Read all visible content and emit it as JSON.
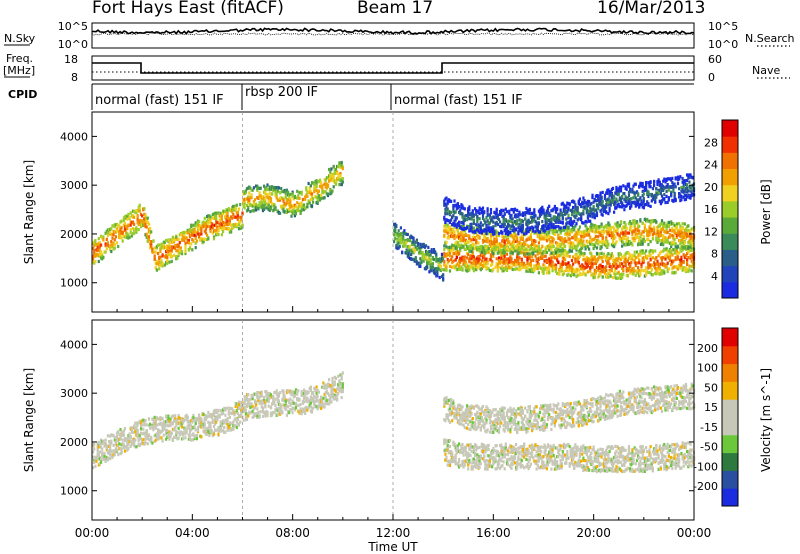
{
  "header": {
    "station": "Fort Hays East (fitACF)",
    "beam": "Beam 17",
    "date": "16/Mar/2013"
  },
  "left_labels": {
    "nsky": "N.Sky",
    "freq": "Freq.",
    "freq_unit": "[MHz]",
    "cpid": "CPID"
  },
  "right_labels": {
    "nsearch": "N.Search",
    "nave": "Nave"
  },
  "noise_panel": {
    "left_ticks": [
      "10^5",
      "10^0"
    ],
    "right_ticks": [
      "10^5",
      "10^0"
    ]
  },
  "freq_panel": {
    "left_ticks": [
      "18",
      "8"
    ],
    "right_ticks": [
      "60",
      "0"
    ]
  },
  "cpid_segments": [
    {
      "label": "normal (fast) 151 IF",
      "start_h": 0,
      "end_h": 6
    },
    {
      "label": "rbsp 200 IF",
      "start_h": 6,
      "end_h": 12
    },
    {
      "label": "normal (fast) 151 IF",
      "start_h": 12,
      "end_h": 24
    }
  ],
  "colors": {
    "power_scale": [
      "#1a2be0",
      "#2244bb",
      "#2a5e88",
      "#3a8a5a",
      "#5aaa3a",
      "#9acc2a",
      "#f0d020",
      "#f0a000",
      "#f07000",
      "#f03000",
      "#e00000"
    ],
    "velocity_scale": [
      "#1a2be0",
      "#2a4fa0",
      "#2e7a3e",
      "#6ac83a",
      "#c8c8b8",
      "#c8c8b8",
      "#f0b000",
      "#f08000",
      "#f04000",
      "#e00000"
    ]
  },
  "chart_data": [
    {
      "type": "heatmap",
      "name": "power",
      "xlabel": "Time UT",
      "ylabel": "Slant Range [km]",
      "x_ticks": [
        "00:00",
        "04:00",
        "08:00",
        "12:00",
        "16:00",
        "20:00",
        "00:00"
      ],
      "xlim": [
        0,
        24
      ],
      "y_ticks": [
        "1000",
        "2000",
        "3000",
        "4000"
      ],
      "ylim": [
        400,
        4500
      ],
      "colorbar": {
        "label": "Power [dB]",
        "ticks": [
          "28",
          "24",
          "20",
          "16",
          "12",
          "8",
          "4"
        ],
        "range": [
          0,
          30
        ]
      },
      "bands": [
        {
          "x": [
            0,
            0.5,
            1,
            1.5,
            2,
            2.5,
            3,
            3.5,
            4,
            4.5,
            5,
            5.5,
            6
          ],
          "y": [
            1600,
            1800,
            2000,
            2200,
            2400,
            1500,
            1650,
            1800,
            1950,
            2100,
            2200,
            2300,
            2400
          ],
          "power": 26
        },
        {
          "x": [
            6,
            7,
            8,
            9,
            10
          ],
          "y": [
            2700,
            2750,
            2600,
            2900,
            3300
          ],
          "power": 22
        },
        {
          "x": [
            12,
            12.5,
            13,
            13.5,
            14
          ],
          "y": [
            2000,
            1800,
            1600,
            1450,
            1300
          ],
          "power": 16
        },
        {
          "x": [
            14,
            15,
            16,
            17,
            18,
            19,
            20,
            21,
            22,
            23,
            24
          ],
          "y": [
            1500,
            1500,
            1500,
            1500,
            1450,
            1400,
            1350,
            1350,
            1400,
            1450,
            1500
          ],
          "power": 27
        },
        {
          "x": [
            14,
            15,
            16,
            17,
            18,
            19,
            20,
            21,
            22,
            23,
            24
          ],
          "y": [
            2000,
            1900,
            1850,
            1850,
            1850,
            1900,
            1950,
            2000,
            2050,
            2000,
            1950
          ],
          "power": 24
        },
        {
          "x": [
            14,
            15,
            16,
            17,
            18,
            19,
            20,
            21,
            22,
            23,
            24
          ],
          "y": [
            2500,
            2300,
            2250,
            2250,
            2300,
            2400,
            2550,
            2750,
            2800,
            2900,
            3000
          ],
          "power": 9
        }
      ]
    },
    {
      "type": "heatmap",
      "name": "velocity",
      "xlabel": "Time UT",
      "ylabel": "Slant Range [km]",
      "x_ticks": [
        "00:00",
        "04:00",
        "08:00",
        "12:00",
        "16:00",
        "20:00",
        "00:00"
      ],
      "xlim": [
        0,
        24
      ],
      "y_ticks": [
        "1000",
        "2000",
        "3000",
        "4000"
      ],
      "ylim": [
        400,
        4500
      ],
      "colorbar": {
        "label": "Velocity [m s^-1]",
        "ticks": [
          "200",
          "100",
          "50",
          "15",
          "-15",
          "-50",
          "-100",
          "-200"
        ],
        "range": [
          -250,
          250
        ]
      },
      "bands": [
        {
          "x": [
            0,
            1,
            2,
            3,
            4,
            5,
            6
          ],
          "y": [
            1700,
            2000,
            2200,
            2300,
            2300,
            2400,
            2600
          ],
          "velocity": 0
        },
        {
          "x": [
            6,
            7,
            8,
            9,
            10
          ],
          "y": [
            2700,
            2800,
            2800,
            2900,
            3200
          ],
          "velocity": 0
        },
        {
          "x": [
            14,
            15,
            16,
            17,
            18,
            19,
            20,
            21,
            22,
            23,
            24
          ],
          "y": [
            1800,
            1700,
            1700,
            1700,
            1700,
            1700,
            1650,
            1650,
            1650,
            1700,
            1750
          ],
          "velocity": 0
        },
        {
          "x": [
            14,
            15,
            16,
            17,
            18,
            19,
            20,
            21,
            22,
            23,
            24
          ],
          "y": [
            2700,
            2500,
            2450,
            2450,
            2500,
            2550,
            2650,
            2800,
            2850,
            2900,
            2950
          ],
          "velocity": 0
        }
      ]
    }
  ]
}
